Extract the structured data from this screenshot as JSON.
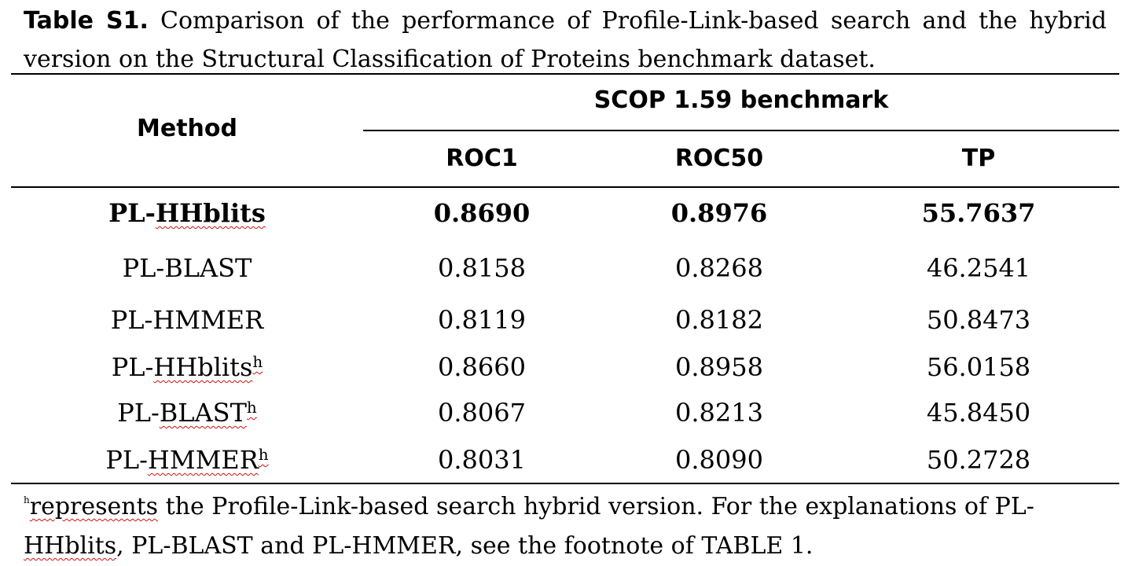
{
  "caption": {
    "label": "Table S1.",
    "text": " Comparison of the performance of Profile-Link-based search and the hybrid version on the Structural Classification of Proteins benchmark dataset."
  },
  "table": {
    "method_header": "Method",
    "group_header": "SCOP 1.59 benchmark",
    "columns": [
      "ROC1",
      "ROC50",
      "TP"
    ],
    "rows": [
      {
        "prefix": "PL-",
        "name": "HHblits",
        "sup": "",
        "values": [
          "0.8690",
          "0.8976",
          "55.7637"
        ],
        "bold": true
      },
      {
        "prefix": "",
        "name": "PL-BLAST",
        "sup": "",
        "values": [
          "0.8158",
          "0.8268",
          "46.2541"
        ],
        "bold": false
      },
      {
        "prefix": "",
        "name": "PL-HMMER",
        "sup": "",
        "values": [
          "0.8119",
          "0.8182",
          "50.8473"
        ],
        "bold": false
      },
      {
        "prefix": "PL-",
        "name": "HHblits",
        "sup": "h",
        "values": [
          "0.8660",
          "0.8958",
          "56.0158"
        ],
        "bold": false
      },
      {
        "prefix": "PL-",
        "name": "BLAST",
        "sup": "h",
        "values": [
          "0.8067",
          "0.8213",
          "45.8450"
        ],
        "bold": false
      },
      {
        "prefix": "PL-",
        "name": "HMMER",
        "sup": "h",
        "values": [
          "0.8031",
          "0.8090",
          "50.2728"
        ],
        "bold": false
      }
    ]
  },
  "footnote": {
    "sup": "h",
    "lead_word": "represents",
    "text1": " the Profile-Link-based search hybrid version. For the explanations of PL-",
    "lead_word2": "HHblits",
    "text2": ", PL-BLAST and PL-HMMER, see the footnote of TABLE 1."
  }
}
